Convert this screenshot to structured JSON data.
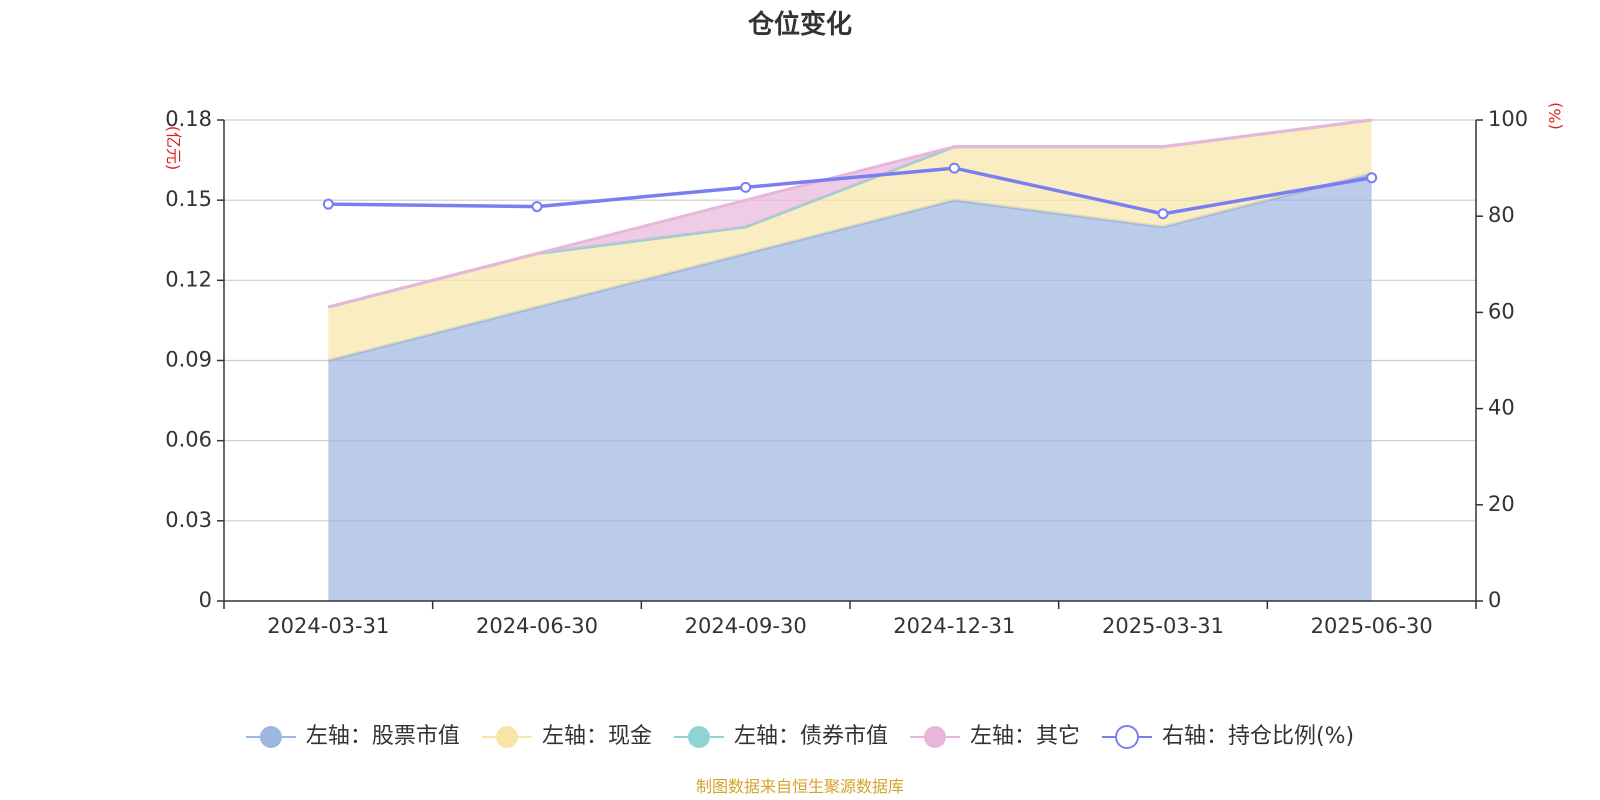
{
  "chart_data": {
    "type": "area",
    "title": "仓位变化",
    "categories": [
      "2024-03-31",
      "2024-06-30",
      "2024-09-30",
      "2024-12-31",
      "2025-03-31",
      "2025-06-30"
    ],
    "left_axis": {
      "unit": "(亿元)",
      "ylim": [
        0,
        0.18
      ],
      "ticks": [
        "0",
        "0.03",
        "0.06",
        "0.09",
        "0.12",
        "0.15",
        "0.18"
      ]
    },
    "right_axis": {
      "unit": "(%)",
      "ylim": [
        0,
        100
      ],
      "ticks": [
        "0",
        "20",
        "40",
        "60",
        "80",
        "100"
      ]
    },
    "series": [
      {
        "name": "左轴：股票市值",
        "axis": "left",
        "stacked": true,
        "color": "#9db7e0",
        "values": [
          0.09,
          0.11,
          0.13,
          0.15,
          0.14,
          0.16
        ]
      },
      {
        "name": "左轴：现金",
        "axis": "left",
        "stacked": true,
        "color": "#f7e6a6",
        "values": [
          0.02,
          0.02,
          0.01,
          0.02,
          0.03,
          0.02
        ]
      },
      {
        "name": "左轴：债券市值",
        "axis": "left",
        "stacked": true,
        "color": "#8fd3d3",
        "values": [
          0,
          0,
          0,
          0,
          0,
          0
        ]
      },
      {
        "name": "左轴：其它",
        "axis": "left",
        "stacked": true,
        "color": "#e8b6da",
        "values": [
          0,
          0,
          0.01,
          0,
          0,
          0
        ]
      },
      {
        "name": "右轴：持仓比例(%)",
        "axis": "right",
        "type": "line",
        "color": "#7b7ef0",
        "values": [
          82.5,
          82,
          86,
          90,
          80.5,
          88
        ]
      }
    ],
    "grid": true,
    "legend_position": "bottom",
    "source_note": "制图数据来自恒生聚源数据库",
    "unit_color": "#e02020",
    "source_color": "#d4a32a"
  }
}
